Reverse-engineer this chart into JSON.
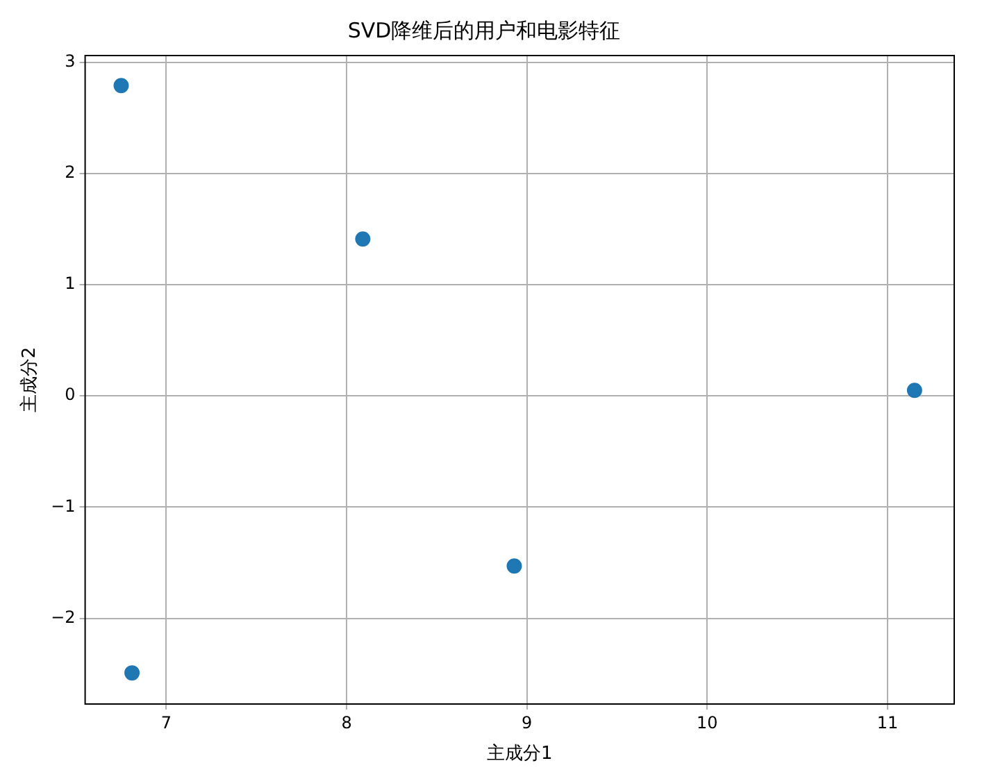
{
  "chart_data": {
    "type": "scatter",
    "title": "SVD降维后的用户和电影特征",
    "xlabel": "主成分1",
    "ylabel": "主成分2",
    "x": [
      6.75,
      8.09,
      11.15,
      8.93,
      6.81
    ],
    "series": [
      {
        "color": "#1f77b4",
        "values": [
          2.79,
          1.41,
          0.05,
          -1.53,
          -2.49
        ]
      }
    ],
    "xlim": [
      6.55,
      11.37
    ],
    "xticks": [
      7,
      8,
      9,
      10,
      11
    ],
    "ylim": [
      -2.77,
      3.06
    ],
    "yticks": [
      {
        "value": -2,
        "label": "−2"
      },
      {
        "value": -1,
        "label": "−1"
      },
      0,
      1,
      2,
      3
    ],
    "grid": true,
    "legend": false,
    "marker": "circle"
  }
}
